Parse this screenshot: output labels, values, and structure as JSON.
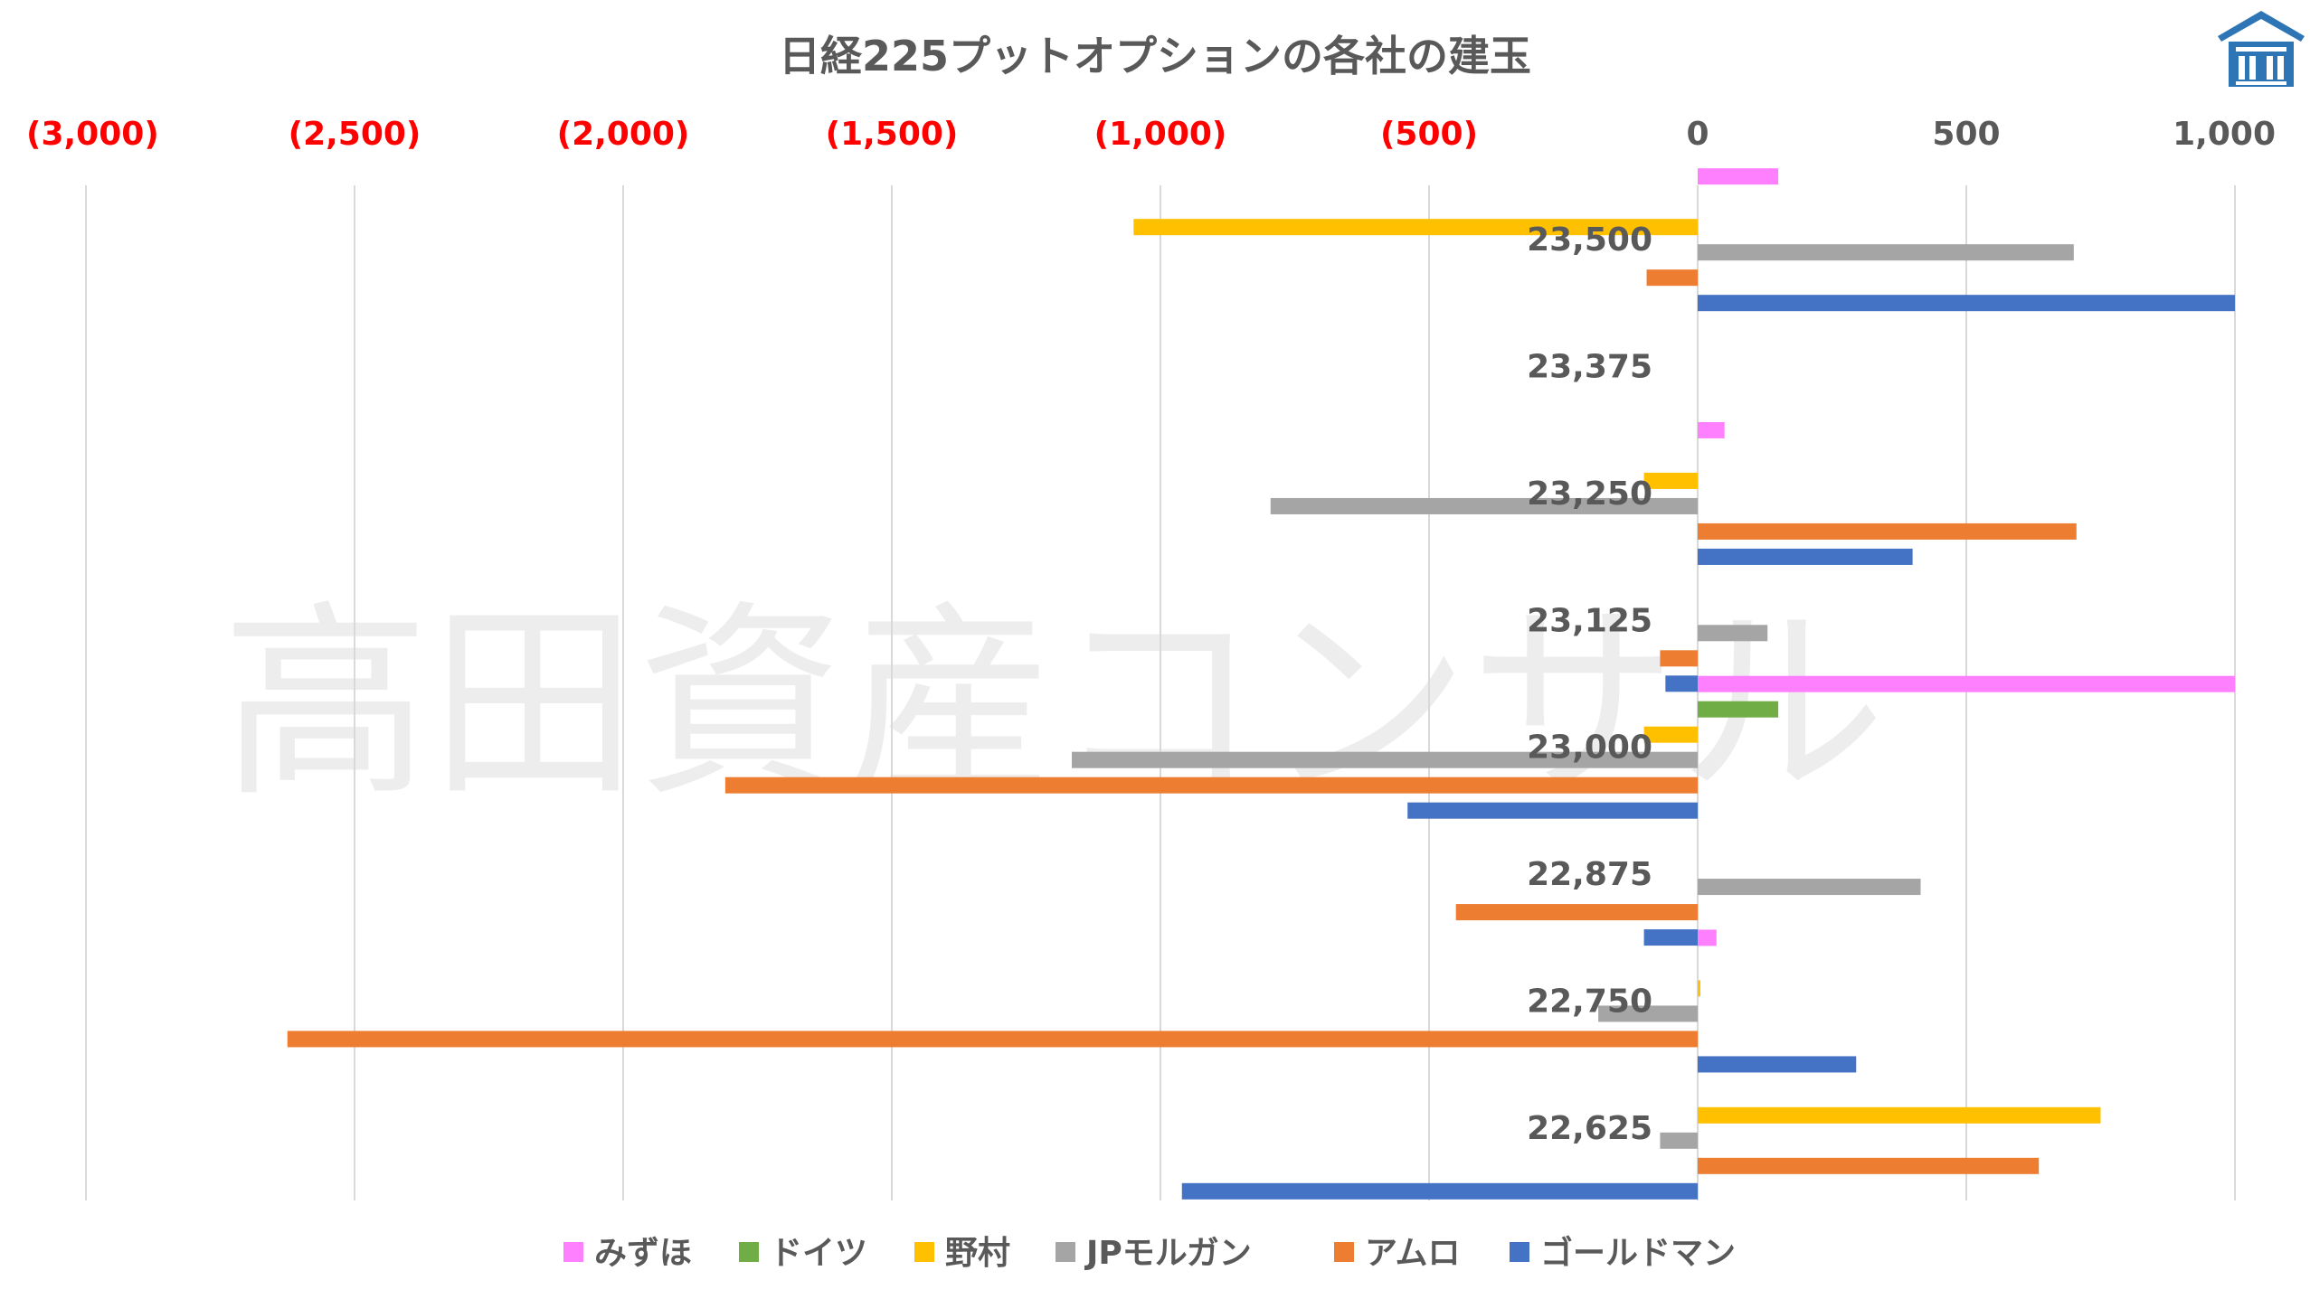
{
  "watermark": "高田資産コンサル",
  "logo": {
    "icon": "building-logo-icon",
    "color": "#2e75b6"
  },
  "chart_data": {
    "type": "bar",
    "orientation": "horizontal",
    "title": "日経225プットオプションの各社の建玉",
    "xlim": [
      -3000,
      1000
    ],
    "xticks": [
      -3000,
      -2500,
      -2000,
      -1500,
      -1000,
      -500,
      0,
      500,
      1000
    ],
    "xtick_labels": [
      "(3,000)",
      "(2,500)",
      "(2,000)",
      "(1,500)",
      "(1,000)",
      "(500)",
      "0",
      "500",
      "1,000"
    ],
    "negative_tick_color": "#ff0000",
    "grid": true,
    "legend_position": "bottom",
    "categories": [
      "23,500",
      "23,375",
      "23,250",
      "23,125",
      "23,000",
      "22,875",
      "22,750",
      "22,625"
    ],
    "series": [
      {
        "name": "みずほ",
        "color": "#ff80ff",
        "values": [
          150,
          0,
          50,
          0,
          1000,
          0,
          35,
          0
        ]
      },
      {
        "name": "ドイツ",
        "color": "#70ad47",
        "values": [
          0,
          0,
          0,
          0,
          150,
          0,
          0,
          0
        ]
      },
      {
        "name": "野村",
        "color": "#ffc000",
        "values": [
          -1050,
          0,
          -100,
          0,
          -100,
          0,
          5,
          750
        ]
      },
      {
        "name": "JPモルガン",
        "color": "#a5a5a5",
        "values": [
          700,
          0,
          -795,
          130,
          -1165,
          415,
          -185,
          -70
        ]
      },
      {
        "name": "アムロ",
        "color": "#ed7d31",
        "values": [
          -95,
          0,
          705,
          -70,
          -1810,
          -450,
          -2625,
          635
        ]
      },
      {
        "name": "ゴールドマン",
        "color": "#4472c4",
        "values": [
          1000,
          0,
          400,
          -60,
          -540,
          -100,
          295,
          -960
        ]
      }
    ]
  }
}
